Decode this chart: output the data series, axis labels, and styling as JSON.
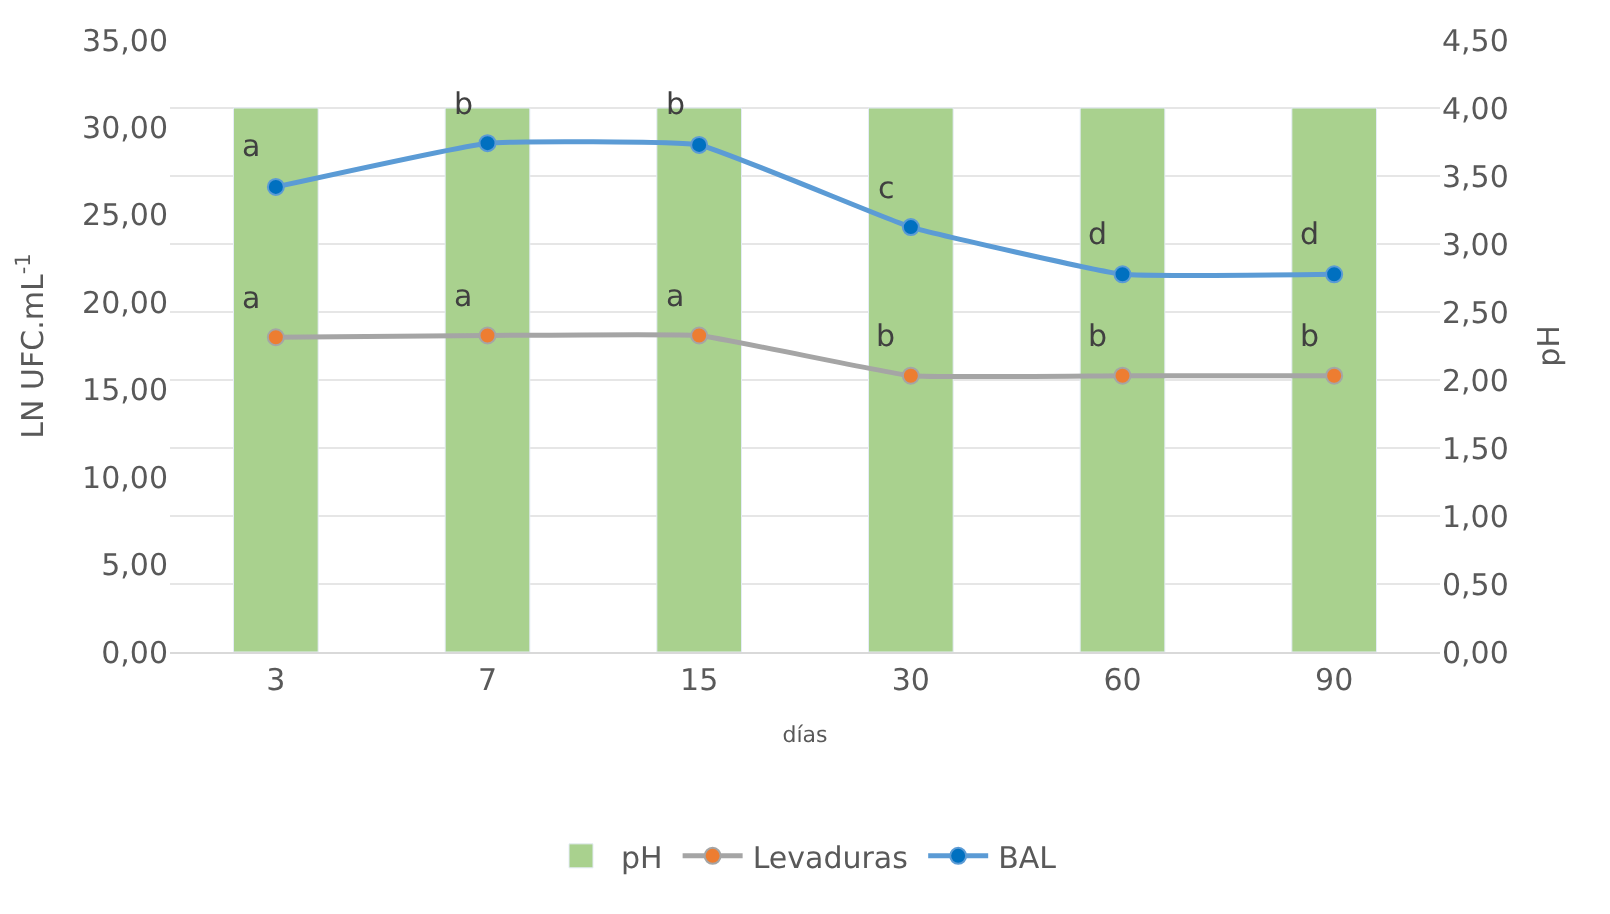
{
  "chart_data": {
    "type": "line",
    "categories": [
      "3",
      "7",
      "15",
      "30",
      "60",
      "90"
    ],
    "xlabel": "días",
    "ylabel": "LN UFC.mL$^{-1}$",
    "y2label": "pH",
    "ylim": [
      0,
      35
    ],
    "yticks": [
      {
        "value": 0,
        "label": "0,00"
      },
      {
        "value": 5,
        "label": "5,00"
      },
      {
        "value": 10,
        "label": "10,00"
      },
      {
        "value": 15,
        "label": "15,00"
      },
      {
        "value": 20,
        "label": "20,00"
      },
      {
        "value": 25,
        "label": "25,00"
      },
      {
        "value": 30,
        "label": "30,00"
      },
      {
        "value": 35,
        "label": "35,00"
      }
    ],
    "y2lim": [
      0,
      4.5
    ],
    "y2ticks": [
      {
        "value": 0,
        "label": "0,00"
      },
      {
        "value": 0.5,
        "label": "0,50"
      },
      {
        "value": 1,
        "label": "1,00"
      },
      {
        "value": 1.5,
        "label": "1,50"
      },
      {
        "value": 2,
        "label": "2,00"
      },
      {
        "value": 2.5,
        "label": "2,50"
      },
      {
        "value": 3,
        "label": "3,00"
      },
      {
        "value": 3.5,
        "label": "3,50"
      },
      {
        "value": 4,
        "label": "4,00"
      },
      {
        "value": 4.5,
        "label": "4,50"
      }
    ],
    "series": [
      {
        "name": "pH",
        "type": "bar",
        "axis": "y2",
        "color": "#a9d18e",
        "values": [
          4.0,
          4.0,
          4.0,
          4.0,
          4.0,
          4.0
        ]
      },
      {
        "name": "Levaduras",
        "color": "#a5a5a5",
        "colors": [
          "#ed7d31",
          "#ed7d31",
          "#ed7d31",
          "#ed7d31",
          "#ed7d31",
          "#ed7d31"
        ],
        "values": [
          18.0,
          18.1,
          18.1,
          15.8,
          15.8,
          15.8
        ]
      },
      {
        "name": "BAL",
        "color": "#5b9bd5",
        "colors": [
          "#0070c0",
          "#0070c0",
          "#0070c0",
          "#0070c0",
          "#0070c0",
          "#0070c0"
        ],
        "values": [
          26.6,
          29.1,
          29.0,
          24.3,
          21.6,
          21.6
        ]
      }
    ],
    "annotations": [
      {
        "text": "a",
        "x": "3",
        "y": 18.0
      },
      {
        "text": "a",
        "x": "7",
        "y": 18.1
      },
      {
        "text": "a",
        "x": "15",
        "y": 18.1
      },
      {
        "text": "b",
        "x": "30",
        "y": 15.8
      },
      {
        "text": "b",
        "x": "60",
        "y": 15.8
      },
      {
        "text": "b",
        "x": "90",
        "y": 15.8
      },
      {
        "text": "a",
        "x": "3",
        "y": 26.6
      },
      {
        "text": "b",
        "x": "7",
        "y": 29.1
      },
      {
        "text": "b",
        "x": "15",
        "y": 29.0
      },
      {
        "text": "c",
        "x": "30",
        "y": 24.3
      },
      {
        "text": "d",
        "x": "60",
        "y": 21.6
      },
      {
        "text": "d",
        "x": "90",
        "y": 21.6
      }
    ],
    "grid": "y",
    "legend": "bottom",
    "marker": "circle"
  }
}
